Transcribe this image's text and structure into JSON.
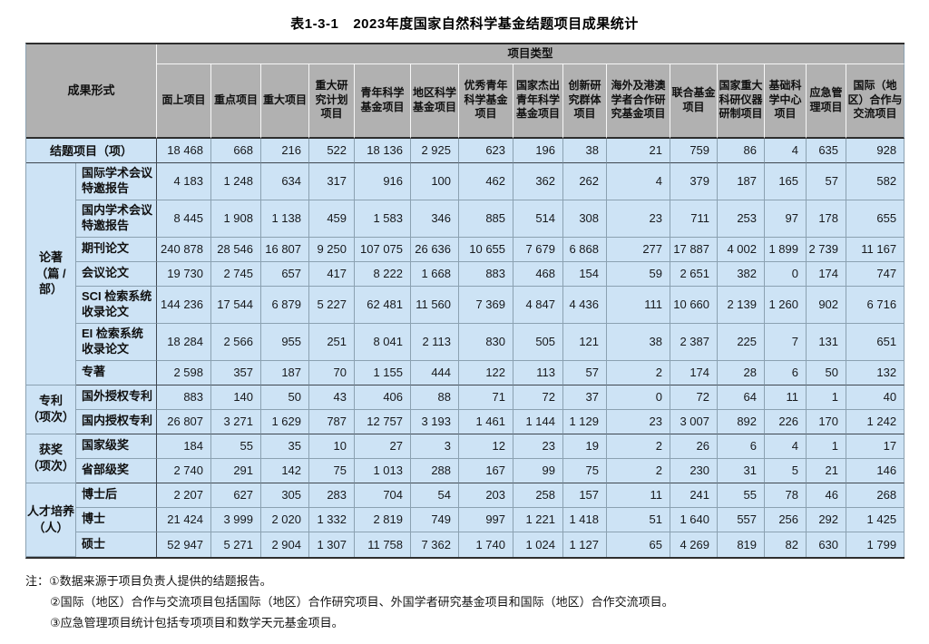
{
  "title": {
    "label": "表1-3-1",
    "text": "2023年度国家自然科学基金结题项目成果统计"
  },
  "table": {
    "stub_header": "成果形式",
    "span_header": "项目类型",
    "columns": [
      "面上项目",
      "重点项目",
      "重大项目",
      "重大研究计划项目",
      "青年科学基金项目",
      "地区科学基金项目",
      "优秀青年科学基金项目",
      "国家杰出青年科学基金项目",
      "创新研究群体项目",
      "海外及港澳学者合作研究基金项目",
      "联合基金项目",
      "国家重大科研仪器研制项目",
      "基础科学中心项目",
      "应急管理项目",
      "国际（地区）合作与交流项目"
    ],
    "groups": [
      {
        "label": null,
        "items": [
          {
            "label": "结题项目（项）",
            "values": [
              "18 468",
              "668",
              "216",
              "522",
              "18 136",
              "2 925",
              "623",
              "196",
              "38",
              "21",
              "759",
              "86",
              "4",
              "635",
              "928"
            ]
          }
        ]
      },
      {
        "label": "论著\n（篇 / 部）",
        "items": [
          {
            "label": "国际学术会议特邀报告",
            "values": [
              "4 183",
              "1 248",
              "634",
              "317",
              "916",
              "100",
              "462",
              "362",
              "262",
              "4",
              "379",
              "187",
              "165",
              "57",
              "582"
            ]
          },
          {
            "label": "国内学术会议特邀报告",
            "values": [
              "8 445",
              "1 908",
              "1 138",
              "459",
              "1 583",
              "346",
              "885",
              "514",
              "308",
              "23",
              "711",
              "253",
              "97",
              "178",
              "655"
            ]
          },
          {
            "label": "期刊论文",
            "values": [
              "240 878",
              "28 546",
              "16 807",
              "9 250",
              "107 075",
              "26 636",
              "10 655",
              "7 679",
              "6 868",
              "277",
              "17 887",
              "4 002",
              "1 899",
              "2 739",
              "11 167"
            ]
          },
          {
            "label": "会议论文",
            "values": [
              "19 730",
              "2 745",
              "657",
              "417",
              "8 222",
              "1 668",
              "883",
              "468",
              "154",
              "59",
              "2 651",
              "382",
              "0",
              "174",
              "747"
            ]
          },
          {
            "label": "SCI 检索系统收录论文",
            "values": [
              "144 236",
              "17 544",
              "6 879",
              "5 227",
              "62 481",
              "11 560",
              "7 369",
              "4 847",
              "4 436",
              "111",
              "10 660",
              "2 139",
              "1 260",
              "902",
              "6 716"
            ]
          },
          {
            "label": "EI 检索系统收录论文",
            "values": [
              "18 284",
              "2 566",
              "955",
              "251",
              "8 041",
              "2 113",
              "830",
              "505",
              "121",
              "38",
              "2 387",
              "225",
              "7",
              "131",
              "651"
            ]
          },
          {
            "label": "专著",
            "values": [
              "2 598",
              "357",
              "187",
              "70",
              "1 155",
              "444",
              "122",
              "113",
              "57",
              "2",
              "174",
              "28",
              "6",
              "50",
              "132"
            ]
          }
        ]
      },
      {
        "label": "专利\n（项次）",
        "items": [
          {
            "label": "国外授权专利",
            "values": [
              "883",
              "140",
              "50",
              "43",
              "406",
              "88",
              "71",
              "72",
              "37",
              "0",
              "72",
              "64",
              "11",
              "1",
              "40"
            ]
          },
          {
            "label": "国内授权专利",
            "values": [
              "26 807",
              "3 271",
              "1 629",
              "787",
              "12 757",
              "3 193",
              "1 461",
              "1 144",
              "1 129",
              "23",
              "3 007",
              "892",
              "226",
              "170",
              "1 242"
            ]
          }
        ]
      },
      {
        "label": "获奖\n（项次）",
        "items": [
          {
            "label": "国家级奖",
            "values": [
              "184",
              "55",
              "35",
              "10",
              "27",
              "3",
              "12",
              "23",
              "19",
              "2",
              "26",
              "6",
              "4",
              "1",
              "17"
            ]
          },
          {
            "label": "省部级奖",
            "values": [
              "2 740",
              "291",
              "142",
              "75",
              "1 013",
              "288",
              "167",
              "99",
              "75",
              "2",
              "230",
              "31",
              "5",
              "21",
              "146"
            ]
          }
        ]
      },
      {
        "label": "人才培养\n（人）",
        "items": [
          {
            "label": "博士后",
            "values": [
              "2 207",
              "627",
              "305",
              "283",
              "704",
              "54",
              "203",
              "258",
              "157",
              "11",
              "241",
              "55",
              "78",
              "46",
              "268"
            ]
          },
          {
            "label": "博士",
            "values": [
              "21 424",
              "3 999",
              "2 020",
              "1 332",
              "2 819",
              "749",
              "997",
              "1 221",
              "1 418",
              "51",
              "1 640",
              "557",
              "256",
              "292",
              "1 425"
            ]
          },
          {
            "label": "硕士",
            "values": [
              "52 947",
              "5 271",
              "2 904",
              "1 307",
              "11 758",
              "7 362",
              "1 740",
              "1 024",
              "1 127",
              "65",
              "4 269",
              "819",
              "82",
              "630",
              "1 799"
            ]
          }
        ]
      }
    ]
  },
  "notes": {
    "prefix": "注：",
    "items": [
      "①数据来源于项目负责人提供的结题报告。",
      "②国际（地区）合作与交流项目包括国际（地区）合作研究项目、外国学者研究基金项目和国际（地区）合作交流项目。",
      "③应急管理项目统计包括专项项目和数学天元基金项目。"
    ]
  },
  "colors": {
    "header_bg": "#b1b1b1",
    "cell_bg": "#cde3f5",
    "grid_line": "#8ba1b1",
    "section_line": "#3f4750",
    "outer_line": "#2e2e2e"
  }
}
